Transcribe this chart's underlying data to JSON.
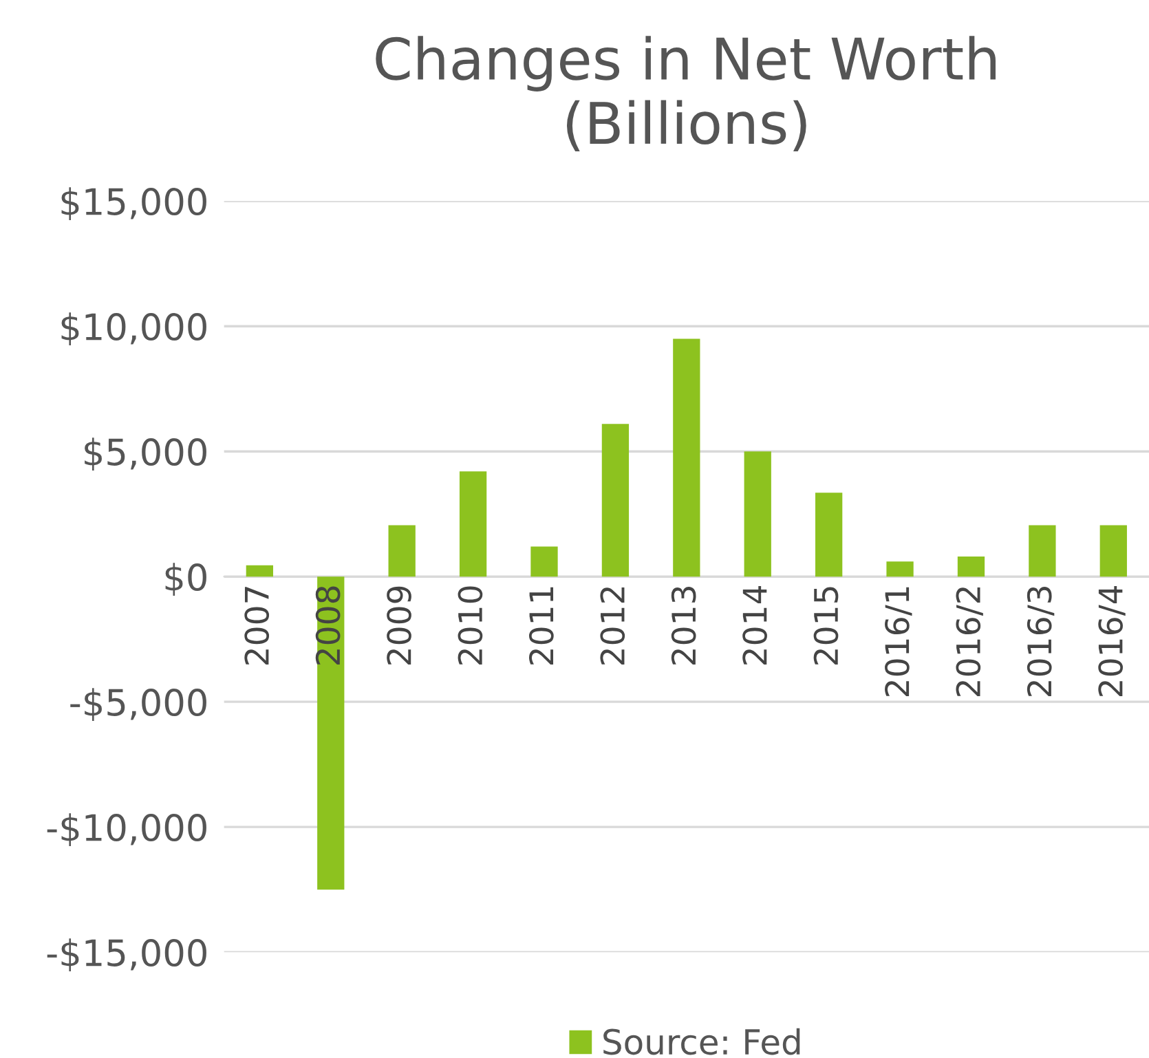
{
  "chart_data": {
    "type": "bar",
    "title": "Changes in Net Worth\n(Billions)",
    "categories": [
      "2007",
      "2008",
      "2009",
      "2010",
      "2011",
      "2012",
      "2013",
      "2014",
      "2015",
      "2016/1",
      "2016/2",
      "2016/3",
      "2016/4"
    ],
    "series": [
      {
        "name": "Source: Fed",
        "color": "#8dc21f",
        "values": [
          450,
          -12500,
          2050,
          4200,
          1200,
          6100,
          9500,
          5000,
          3350,
          600,
          800,
          2050,
          2050
        ]
      }
    ],
    "ylim": [
      -15000,
      15000
    ],
    "yticks": [
      {
        "value": -15000,
        "label": "-$15,000"
      },
      {
        "value": -10000,
        "label": "-$10,000"
      },
      {
        "value": -5000,
        "label": "-$5,000"
      },
      {
        "value": 0,
        "label": "$0"
      },
      {
        "value": 5000,
        "label": "$5,000"
      },
      {
        "value": 10000,
        "label": "$10,000"
      },
      {
        "value": 15000,
        "label": "$15,000"
      }
    ],
    "grid": "y",
    "legend": "bottom"
  }
}
